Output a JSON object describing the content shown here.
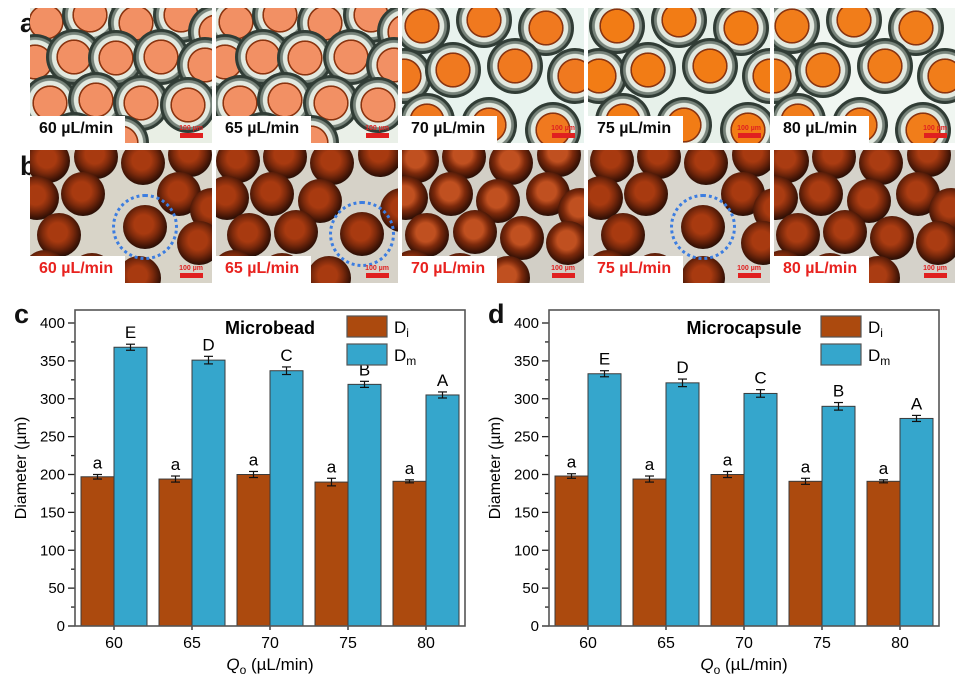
{
  "panels": {
    "a": {
      "label": "a",
      "label_text_color": "#0a0a0a",
      "tiles": [
        {
          "label": "60 µL/min",
          "scale_bar": "100 µm"
        },
        {
          "label": "65 µL/min",
          "scale_bar": "100 µm"
        },
        {
          "label": "70 µL/min",
          "scale_bar": "100 µm"
        },
        {
          "label": "75 µL/min",
          "scale_bar": "100 µm"
        },
        {
          "label": "80 µL/min",
          "scale_bar": "100 µm"
        }
      ]
    },
    "b": {
      "label": "b",
      "label_text_color": "#E8221F",
      "tiles": [
        {
          "label": "60 µL/min",
          "scale_bar": "100 µm",
          "dotted_circle": true,
          "dot_x": 0.63,
          "dot_y": 0.58
        },
        {
          "label": "65 µL/min",
          "scale_bar": "100 µm",
          "dotted_circle": true,
          "dot_x": 0.8,
          "dot_y": 0.63
        },
        {
          "label": "70 µL/min",
          "scale_bar": "100 µm",
          "dotted_circle": false,
          "dot_x": 0,
          "dot_y": 0
        },
        {
          "label": "75 µL/min",
          "scale_bar": "100 µm",
          "dotted_circle": true,
          "dot_x": 0.63,
          "dot_y": 0.58
        },
        {
          "label": "80 µL/min",
          "scale_bar": "100 µm",
          "dotted_circle": false,
          "dot_x": 0,
          "dot_y": 0
        }
      ]
    }
  },
  "chart_data": [
    {
      "panel_label": "c",
      "type": "bar",
      "title": "Microbead",
      "categories": [
        "60",
        "65",
        "70",
        "75",
        "80"
      ],
      "xlabel": {
        "base": "Q",
        "sub": "o",
        "rest": " (µL/min)"
      },
      "ylabel": "Diameter (µm)",
      "ylim": [
        0,
        400
      ],
      "ytick_step": 50,
      "ytick_minor_step": 25,
      "grid": false,
      "legend_position": "top-right",
      "series": [
        {
          "name": "Di",
          "legend_base": "D",
          "legend_sub": "i",
          "color": "#AC4A0E",
          "values": [
            197,
            194,
            200,
            190,
            191
          ],
          "errors": [
            3,
            4,
            4,
            5,
            2
          ],
          "letters": [
            "a",
            "a",
            "a",
            "a",
            "a"
          ]
        },
        {
          "name": "Dm",
          "legend_base": "D",
          "legend_sub": "m",
          "color": "#35A6CC",
          "values": [
            368,
            351,
            337,
            319,
            305
          ],
          "errors": [
            4,
            5,
            5,
            4,
            4
          ],
          "letters": [
            "E",
            "D",
            "C",
            "B",
            "A"
          ]
        }
      ]
    },
    {
      "panel_label": "d",
      "type": "bar",
      "title": "Microcapsule",
      "categories": [
        "60",
        "65",
        "70",
        "75",
        "80"
      ],
      "xlabel": {
        "base": "Q",
        "sub": "o",
        "rest": " (µL/min)"
      },
      "ylabel": "Diameter (µm)",
      "ylim": [
        0,
        400
      ],
      "ytick_step": 50,
      "ytick_minor_step": 25,
      "grid": false,
      "legend_position": "top-right",
      "series": [
        {
          "name": "Di",
          "legend_base": "D",
          "legend_sub": "i",
          "color": "#AC4A0E",
          "values": [
            198,
            194,
            200,
            191,
            191
          ],
          "errors": [
            3,
            4,
            4,
            4,
            2
          ],
          "letters": [
            "a",
            "a",
            "a",
            "a",
            "a"
          ]
        },
        {
          "name": "Dm",
          "legend_base": "D",
          "legend_sub": "m",
          "color": "#35A6CC",
          "values": [
            333,
            321,
            307,
            290,
            274
          ],
          "errors": [
            4,
            5,
            5,
            5,
            4
          ],
          "letters": [
            "E",
            "D",
            "C",
            "B",
            "A"
          ]
        }
      ]
    }
  ],
  "colors": {
    "bar_di": "#AC4A0E",
    "bar_dm": "#35A6CC",
    "bar_stroke": "#3b3b3b",
    "axis_box": "#555555",
    "red_label": "#E8221F",
    "scale_bar": "#E02020",
    "dotted_circle": "#3C7DE0"
  }
}
